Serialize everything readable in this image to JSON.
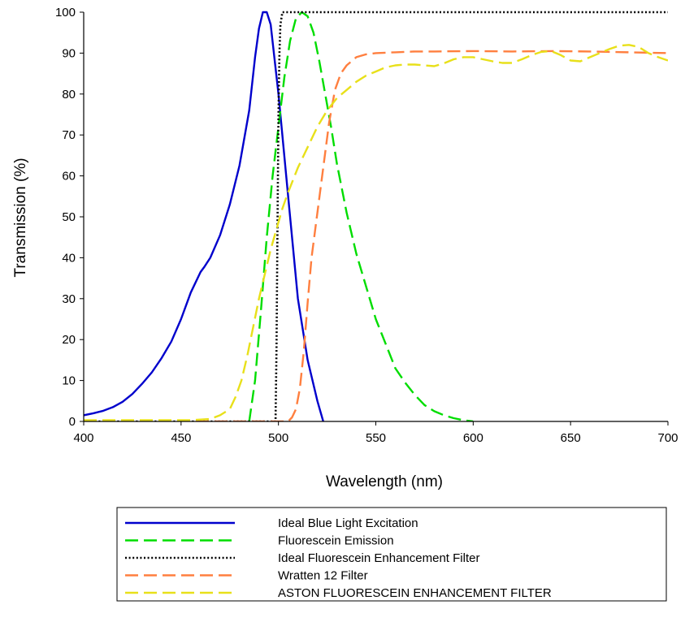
{
  "chart_data": {
    "type": "line",
    "title": "",
    "xlabel": "Wavelength (nm)",
    "ylabel": "Transmission (%)",
    "xlim": [
      400,
      700
    ],
    "ylim": [
      0,
      100
    ],
    "xticks": [
      400,
      450,
      500,
      550,
      600,
      650,
      700
    ],
    "yticks": [
      0,
      10,
      20,
      30,
      40,
      50,
      60,
      70,
      80,
      90,
      100
    ],
    "grid": false,
    "legend_position": "bottom",
    "series": [
      {
        "name": "Ideal Blue Light Excitation",
        "color": "#0000cc",
        "style": "solid",
        "x": [
          400,
          405,
          410,
          415,
          420,
          425,
          430,
          435,
          440,
          445,
          450,
          455,
          460,
          462,
          465,
          470,
          475,
          480,
          485,
          488,
          490,
          492,
          494,
          496,
          500,
          505,
          510,
          515,
          520,
          523
        ],
        "y": [
          1.5,
          2,
          2.6,
          3.5,
          4.8,
          6.7,
          9.2,
          12,
          15.5,
          19.5,
          25,
          31.5,
          36.5,
          37.8,
          40,
          45.5,
          53,
          62.5,
          76,
          89,
          96,
          100,
          100,
          97,
          80,
          55,
          30,
          15,
          5,
          0
        ]
      },
      {
        "name": "Fluorescein Emission",
        "color": "#00dd00",
        "style": "dashed",
        "x": [
          485,
          488,
          491,
          494,
          497,
          500,
          503,
          506,
          509,
          512,
          515,
          518,
          521,
          524,
          527,
          530,
          535,
          540,
          545,
          550,
          555,
          560,
          565,
          570,
          575,
          580,
          585,
          590,
          595,
          600
        ],
        "y": [
          0,
          10,
          27,
          45,
          60,
          72,
          84,
          93,
          98.5,
          100,
          99,
          95,
          88,
          80,
          72,
          63,
          51,
          41,
          33,
          25,
          19,
          13,
          9.5,
          6.5,
          4,
          2.5,
          1.5,
          0.8,
          0.3,
          0
        ]
      },
      {
        "name": "Ideal Fluorescein Enhancement Filter",
        "color": "#000000",
        "style": "dotted",
        "x": [
          400,
          498.5,
          499,
          499.5,
          500,
          500.5,
          501,
          502,
          700
        ],
        "y": [
          0,
          0,
          18,
          48,
          75,
          90,
          97,
          100,
          100
        ]
      },
      {
        "name": "Wratten 12 Filter",
        "color": "#ff7f3f",
        "style": "dashed",
        "x": [
          400,
          505,
          507,
          509,
          511,
          513,
          515,
          517,
          520,
          523,
          526,
          529,
          532,
          535,
          540,
          545,
          550,
          560,
          570,
          580,
          600,
          620,
          640,
          660,
          680,
          700
        ],
        "y": [
          0,
          0,
          1,
          3,
          8,
          17,
          29,
          40,
          51,
          62,
          73,
          81,
          85,
          87,
          89,
          89.7,
          90,
          90.2,
          90.4,
          90.4,
          90.5,
          90.4,
          90.5,
          90.4,
          90.2,
          90
        ]
      },
      {
        "name": "ASTON FLUORESCEIN ENHANCEMENT FILTER",
        "color": "#e8e01a",
        "style": "dashed",
        "x": [
          400,
          420,
          440,
          455,
          465,
          470,
          475,
          478,
          481,
          484,
          487,
          490,
          493,
          496,
          499,
          502,
          505,
          510,
          515,
          520,
          525,
          530,
          535,
          540,
          545,
          550,
          555,
          560,
          565,
          570,
          575,
          580,
          585,
          590,
          595,
          600,
          605,
          610,
          615,
          620,
          625,
          630,
          635,
          640,
          645,
          650,
          655,
          660,
          665,
          670,
          675,
          680,
          685,
          690,
          695,
          700
        ],
        "y": [
          0.3,
          0.3,
          0.3,
          0.3,
          0.6,
          1.5,
          3,
          6,
          10,
          16,
          23,
          30,
          36,
          42,
          47,
          52,
          56,
          62,
          67,
          72,
          76,
          79,
          81,
          83,
          84.5,
          85.5,
          86.5,
          87,
          87.2,
          87.2,
          87,
          86.8,
          87.5,
          88.5,
          89,
          89,
          88.5,
          88,
          87.6,
          87.6,
          88.5,
          89.5,
          90.3,
          90.5,
          89.5,
          88.2,
          88,
          89,
          90,
          91,
          91.8,
          92,
          91.5,
          90,
          89,
          88.2
        ]
      }
    ]
  }
}
